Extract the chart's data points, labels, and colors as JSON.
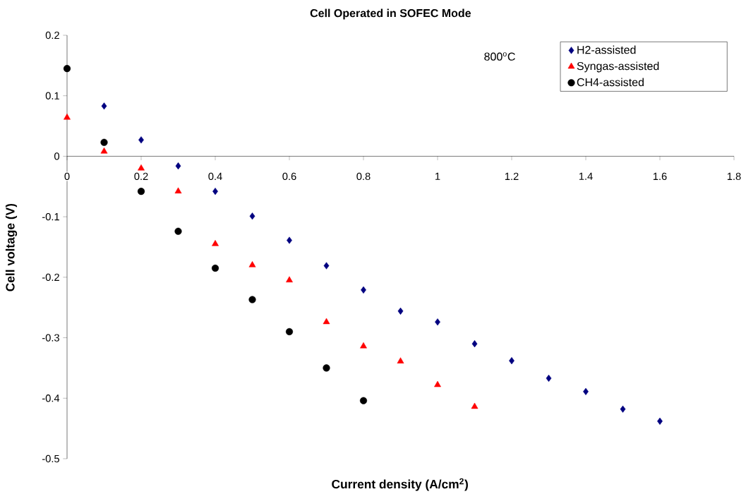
{
  "chart_data": {
    "type": "scatter",
    "title": "Cell Operated in SOFEC Mode",
    "xlabel": "Current density (A/cm$^{2}$)",
    "ylabel": "Cell voltage (V)",
    "annotations": [
      "800$^{o}$C"
    ],
    "series": [
      {
        "name": "H2-assisted",
        "color": "#000080",
        "marker": "diamond",
        "x": [
          0.1,
          0.2,
          0.3,
          0.4,
          0.5,
          0.6,
          0.7,
          0.8,
          0.9,
          1.0,
          1.1,
          1.2,
          1.3,
          1.4,
          1.5,
          1.6
        ],
        "values": [
          0.083,
          0.027,
          -0.016,
          -0.058,
          -0.099,
          -0.139,
          -0.181,
          -0.221,
          -0.256,
          -0.274,
          -0.31,
          -0.338,
          -0.367,
          -0.389,
          -0.418,
          -0.438
        ]
      },
      {
        "name": "Syngas-assisted",
        "color": "#ff0000",
        "marker": "triangle",
        "x": [
          0,
          0.1,
          0.2,
          0.3,
          0.4,
          0.5,
          0.6,
          0.7,
          0.8,
          0.9,
          1.0,
          1.1
        ],
        "values": [
          0.064,
          0.008,
          -0.02,
          -0.058,
          -0.145,
          -0.18,
          -0.205,
          -0.274,
          -0.314,
          -0.339,
          -0.378,
          -0.414
        ]
      },
      {
        "name": "CH4-assisted",
        "color": "#000000",
        "marker": "circle",
        "x": [
          0,
          0.1,
          0.2,
          0.3,
          0.4,
          0.5,
          0.6,
          0.7,
          0.8
        ],
        "values": [
          0.145,
          0.023,
          -0.058,
          -0.124,
          -0.185,
          -0.237,
          -0.29,
          -0.35,
          -0.404
        ]
      }
    ],
    "xlim": [
      0,
      1.8
    ],
    "ylim": [
      -0.5,
      0.2
    ],
    "xticks": [
      0,
      0.2,
      0.4,
      0.6,
      0.8,
      1,
      1.2,
      1.4,
      1.6,
      1.8
    ],
    "yticks": [
      -0.5,
      -0.4,
      -0.3,
      -0.2,
      -0.1,
      0,
      0.1,
      0.2
    ],
    "legend": "top right"
  }
}
